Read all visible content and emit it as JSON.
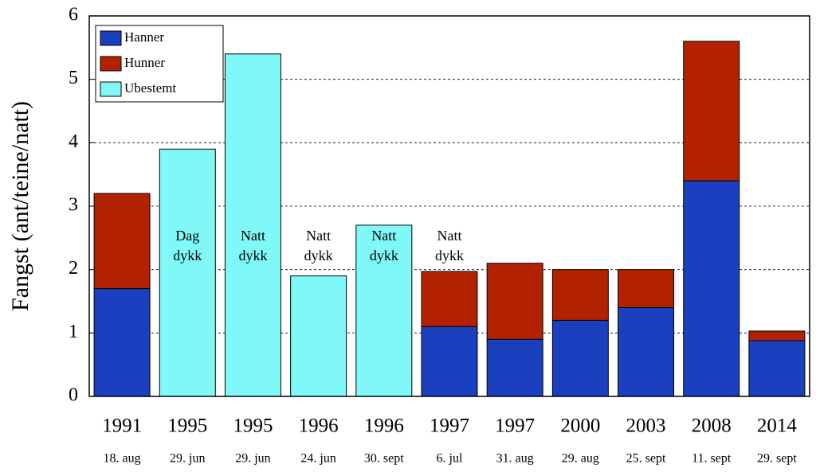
{
  "chart_data": {
    "type": "stacked_bar",
    "y_label": "Fangst (ant/teine/natt)",
    "categories": [
      "1991",
      "1995",
      "1995",
      "1996",
      "1996",
      "1997",
      "1997",
      "2000",
      "2003",
      "2008",
      "2014"
    ],
    "dates": [
      "18. aug",
      "29. jun",
      "29. jun",
      "24. jun",
      "30. sept",
      "6. jul",
      "31. aug",
      "29. aug",
      "25. sept",
      "11. sept",
      "29. sept"
    ],
    "bar_notes": [
      null,
      [
        "Dag",
        "dykk"
      ],
      [
        "Natt",
        "dykk"
      ],
      [
        "Natt",
        "dykk"
      ],
      [
        "Natt",
        "dykk"
      ],
      [
        "Natt",
        "dykk"
      ],
      null,
      null,
      null,
      null,
      null
    ],
    "series": [
      {
        "name": "Hanner",
        "color": "#1a40bf",
        "values": [
          1.7,
          null,
          null,
          null,
          null,
          1.1,
          0.9,
          1.2,
          1.4,
          3.4,
          0.88
        ]
      },
      {
        "name": "Hunner",
        "color": "#b32200",
        "values": [
          1.5,
          null,
          null,
          null,
          null,
          0.87,
          1.2,
          0.8,
          0.6,
          2.2,
          0.15
        ]
      },
      {
        "name": "Ubestemt",
        "color": "#80f8f8",
        "values": [
          null,
          3.9,
          5.4,
          1.9,
          2.7,
          null,
          null,
          null,
          null,
          null,
          null
        ]
      }
    ],
    "ylim": [
      0,
      6
    ],
    "yticks": [
      0,
      1,
      2,
      3,
      4,
      5,
      6
    ],
    "grid": true,
    "legend": "upper-left"
  }
}
